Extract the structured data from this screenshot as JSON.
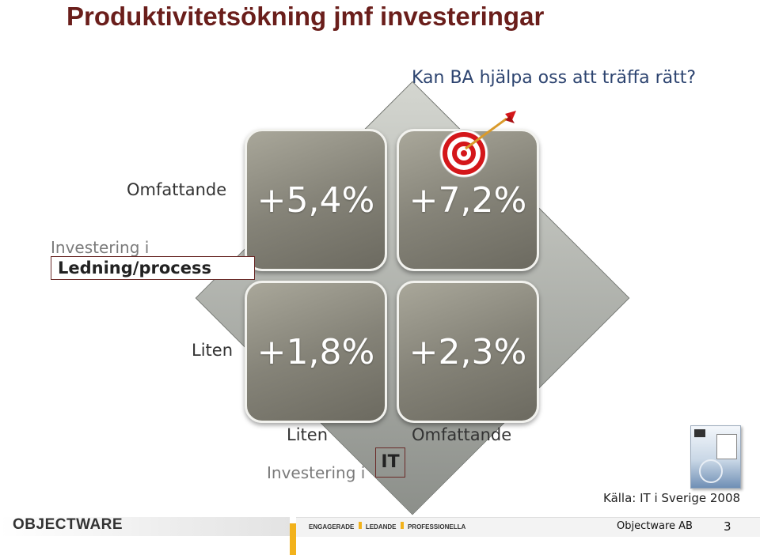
{
  "title": "Produktivitetsökning jmf investeringar",
  "question": "Kan BA hjälpa oss att träffa rätt?",
  "y_axis": {
    "high_label": "Omfattande",
    "low_label": "Liten",
    "title_prefix": "Investering i",
    "title_boxed": "Ledning/process"
  },
  "x_axis": {
    "low_label": "Liten",
    "high_label": "Omfattande",
    "title_prefix": "Investering i",
    "title_boxed": "IT"
  },
  "quadrants": {
    "top_left": "+5,4%",
    "top_right": "+7,2%",
    "bottom_left": "+1,8%",
    "bottom_right": "+2,3%"
  },
  "source": "Källa: IT i Sverige 2008",
  "footer": {
    "logo": "OBJECTWARE",
    "tagline_parts": [
      "ENGAGERADE",
      "LEDANDE",
      "PROFESSIONELLA"
    ],
    "company": "Objectware AB",
    "page_number": "3"
  },
  "colors": {
    "title": "#6a1e1b",
    "question": "#2d4470",
    "accent": "#f2b21c"
  }
}
